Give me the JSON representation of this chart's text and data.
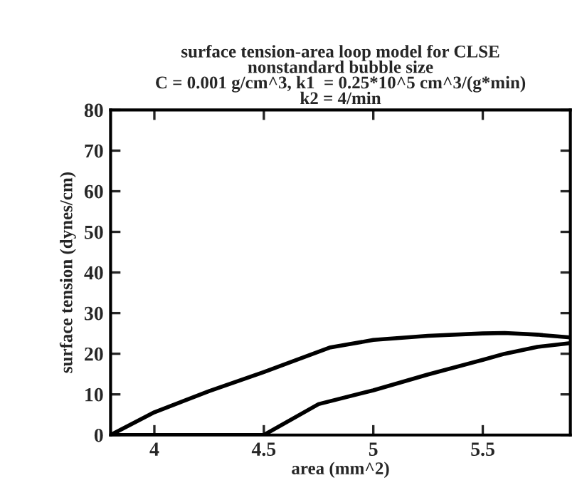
{
  "chart_data": {
    "type": "line",
    "title": "surface tension-area loop model for CLSE\nnonstandard bubble size\nC = 0.001 g/cm^3, k1  = 0.25*10^5 cm^3/(g*min)\nk2 = 4/min",
    "xlabel": "area (mm^2)",
    "ylabel": "surface tension (dynes/cm)",
    "series": [
      {
        "color": "#000000",
        "x": [
          3.8,
          4.0,
          4.25,
          4.5,
          4.8,
          5.0,
          5.25,
          5.5,
          5.6,
          5.75,
          5.9
        ],
        "values": [
          0,
          5.6,
          10.8,
          15.5,
          21.5,
          23.4,
          24.4,
          25,
          25.1,
          24.7,
          24
        ]
      },
      {
        "color": "#000000",
        "x": [
          3.8,
          4.2,
          4.5,
          4.75,
          5.0,
          5.25,
          5.5,
          5.6,
          5.75,
          5.9
        ],
        "values": [
          0,
          0,
          0,
          7.6,
          11,
          14.9,
          18.5,
          20,
          21.7,
          22.6
        ]
      }
    ],
    "xlim": [
      3.8,
      5.9
    ],
    "xticks": [
      4,
      4.5,
      5,
      5.5
    ],
    "ylim": [
      0,
      80
    ],
    "yticks": [
      0,
      10,
      20,
      30,
      40,
      50,
      60,
      70,
      80
    ],
    "grid": false,
    "marker": "none",
    "line_style": "solid"
  }
}
